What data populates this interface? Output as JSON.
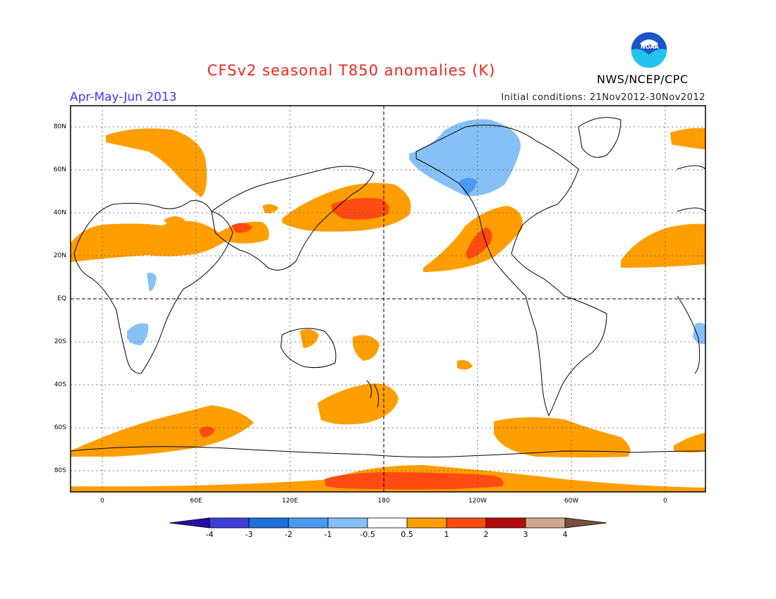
{
  "title": "CFSv2 seasonal T850 anomalies (K)",
  "season": "Apr-May-Jun 2013",
  "initial_conditions": "Initial conditions: 21Nov2012-30Nov2012",
  "agency": "NWS/NCEP/CPC",
  "logo_text": "NOAA",
  "map": {
    "lat_labels": [
      "80N",
      "60N",
      "40N",
      "20N",
      "EQ",
      "20S",
      "40S",
      "60S",
      "80S"
    ],
    "lon_labels": [
      "0",
      "60E",
      "120E",
      "180",
      "120W",
      "60W",
      "0"
    ]
  },
  "colorbar": {
    "labels": [
      "-4",
      "-3",
      "-2",
      "-1",
      "-0.5",
      "0.5",
      "1",
      "2",
      "3",
      "4"
    ],
    "colors": [
      "#2a0aa8",
      "#3d3fd4",
      "#1f6fd9",
      "#4a98f0",
      "#86c0f6",
      "#ffffff",
      "#ff9e00",
      "#ff4a12",
      "#b30c0c",
      "#d0a890",
      "#7d4e3c"
    ]
  }
}
